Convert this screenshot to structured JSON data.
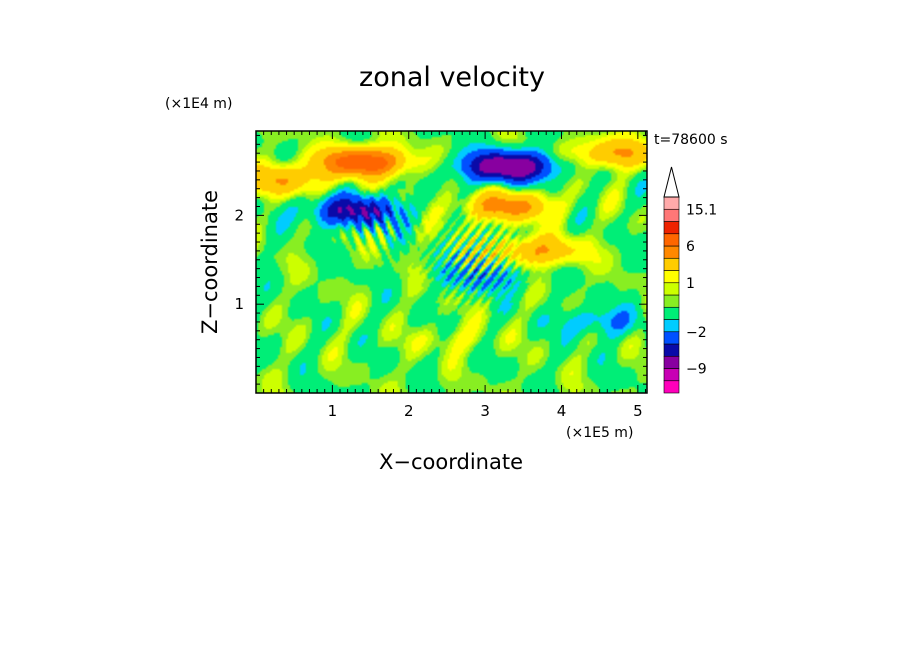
{
  "chart_data": {
    "type": "heatmap",
    "title": "zonal velocity",
    "xlabel": "X−coordinate",
    "ylabel": "Z−coordinate",
    "x_scale_label": "(×1E5 m)",
    "y_scale_label": "(×1E4 m)",
    "time_label": "t=78600 s",
    "xlim": [
      0,
      5.12
    ],
    "ylim": [
      0,
      2.95
    ],
    "x_ticks": [
      "1",
      "2",
      "3",
      "4",
      "5"
    ],
    "y_ticks": [
      "1",
      "2"
    ],
    "colorbar": {
      "extend_max": true,
      "levels": [
        -15,
        -12,
        -9,
        -6,
        -4,
        -2,
        -1,
        0,
        0.5,
        1,
        2,
        4,
        6,
        9,
        12,
        15.1
      ],
      "colors": [
        "#ff00bb",
        "#c800b4",
        "#8800a0",
        "#0a0aa8",
        "#0050ff",
        "#00ccff",
        "#00ee77",
        "#88ee22",
        "#ccff00",
        "#ffff00",
        "#ffcc00",
        "#ff8800",
        "#ff6600",
        "#ee2200",
        "#ff7777",
        "#ffaaaa"
      ],
      "labels": [
        "15.1",
        "6",
        "1",
        "−2",
        "−9"
      ],
      "label_values": [
        15.1,
        6,
        1,
        -2,
        -9
      ]
    },
    "field_features": [
      {
        "x": 1.4,
        "z": 2.6,
        "u": 8
      },
      {
        "x": 1.3,
        "z": 2.05,
        "u": -6
      },
      {
        "x": 3.3,
        "z": 2.55,
        "u": -9
      },
      {
        "x": 3.3,
        "z": 2.1,
        "u": 5
      },
      {
        "x": 4.7,
        "z": 2.7,
        "u": 4
      },
      {
        "x": 3.7,
        "z": 1.6,
        "u": 4
      },
      {
        "x": 3.0,
        "z": 1.3,
        "u": -2
      },
      {
        "x": 4.5,
        "z": 0.8,
        "u": -2
      },
      {
        "x": 0.3,
        "z": 2.4,
        "u": 4
      },
      {
        "x": 2.6,
        "z": 0.6,
        "u": 1
      }
    ]
  }
}
